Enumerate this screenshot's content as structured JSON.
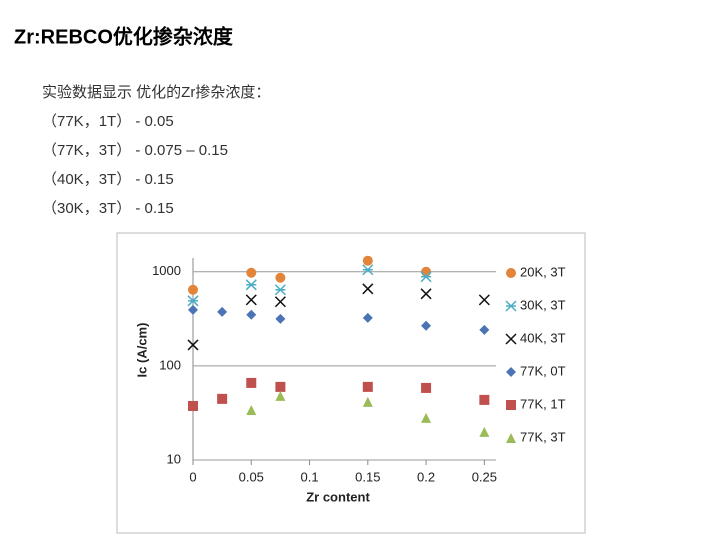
{
  "header": {
    "title": "Zr:REBCO优化掺杂浓度"
  },
  "notes": [
    "实验数据显示 优化的Zr掺杂浓度：",
    "（77K，1T） - 0.05",
    "（77K，3T） - 0.075 – 0.15",
    "（40K，3T） - 0.15",
    "（30K，3T） - 0.15"
  ],
  "chart_data": {
    "type": "scatter",
    "xlabel": "Zr content",
    "ylabel": "Ic (A/cm)",
    "xlim": [
      0,
      0.26
    ],
    "xticks": [
      0,
      0.05,
      0.1,
      0.15,
      0.2,
      0.25
    ],
    "ylim": [
      10,
      1400
    ],
    "yticks": [
      10,
      100,
      1000
    ],
    "log_y": true,
    "grid": true,
    "legend": "right",
    "series": [
      {
        "name": "20K, 3T",
        "color": "#e2843a",
        "marker": "circle",
        "x": [
          0,
          0.05,
          0.075,
          0.15,
          0.2
        ],
        "values": [
          644,
          976,
          864,
          1310,
          1000
        ]
      },
      {
        "name": "30K, 3T",
        "color": "#4bacc6",
        "marker": "asterisk",
        "x": [
          0,
          0.05,
          0.075,
          0.15,
          0.2
        ],
        "values": [
          491,
          727,
          644,
          1050,
          885
        ]
      },
      {
        "name": "40K, 3T",
        "color": "#111111",
        "marker": "cross",
        "x": [
          0,
          0.05,
          0.075,
          0.15,
          0.2,
          0.25
        ],
        "values": [
          167,
          503,
          480,
          659,
          583,
          503
        ]
      },
      {
        "name": "77K, 0T",
        "color": "#4a74b5",
        "marker": "diamond",
        "x": [
          0,
          0.025,
          0.05,
          0.075,
          0.15,
          0.2,
          0.25
        ],
        "values": [
          394,
          375,
          349,
          316,
          324,
          267,
          241
        ]
      },
      {
        "name": "77K, 1T",
        "color": "#c0504d",
        "marker": "square",
        "x": [
          0,
          0.025,
          0.05,
          0.075,
          0.15,
          0.2,
          0.25
        ],
        "values": [
          37.5,
          44.6,
          65.9,
          59.8,
          59.8,
          58.3,
          43.5
        ]
      },
      {
        "name": "77K, 3T",
        "color": "#9bbb59",
        "marker": "triangle",
        "x": [
          0.05,
          0.075,
          0.15,
          0.2,
          0.25
        ],
        "values": [
          34,
          48,
          41.4,
          28,
          19.9
        ]
      }
    ]
  }
}
